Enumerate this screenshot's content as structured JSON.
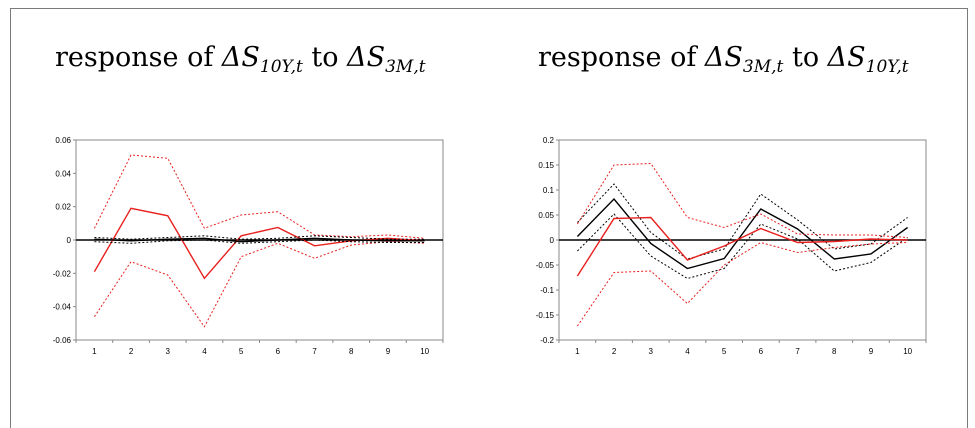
{
  "panels": [
    {
      "title": {
        "prefix": "response of ",
        "lhs": "ΔS",
        "lhs_sub": "10Y,t",
        "mid": " to ",
        "rhs": "ΔS",
        "rhs_sub": "3M,t"
      }
    },
    {
      "title": {
        "prefix": "response of ",
        "lhs": "ΔS",
        "lhs_sub": "3M,t",
        "mid": " to ",
        "rhs": "ΔS",
        "rhs_sub": "10Y,t"
      }
    }
  ],
  "colors": {
    "red": "#e8201e",
    "black": "#000000",
    "axis": "#888888"
  },
  "chart_data": [
    {
      "type": "line",
      "x": [
        1,
        2,
        3,
        4,
        5,
        6,
        7,
        8,
        9,
        10
      ],
      "ylim": [
        -0.06,
        0.06
      ],
      "yticks": [
        "0.06",
        "0.04",
        "0.02",
        "0",
        "-0.02",
        "-0.04",
        "-0.06"
      ],
      "ytick_values": [
        0.06,
        0.04,
        0.02,
        0,
        -0.02,
        -0.04,
        -0.06
      ],
      "xticks": [
        "1",
        "2",
        "3",
        "4",
        "5",
        "6",
        "7",
        "8",
        "9",
        "10"
      ],
      "series": [
        {
          "color": "red",
          "style": "solid",
          "values": [
            -0.019,
            0.019,
            0.0145,
            -0.023,
            0.0025,
            0.0075,
            -0.0035,
            -0.0005,
            0.001,
            -0.0005
          ]
        },
        {
          "color": "red",
          "style": "dotted",
          "values": [
            0.007,
            0.051,
            0.049,
            0.007,
            0.015,
            0.017,
            0.003,
            0.002,
            0.003,
            0.001
          ]
        },
        {
          "color": "red",
          "style": "dotted",
          "values": [
            -0.046,
            -0.013,
            -0.021,
            -0.052,
            -0.01,
            -0.002,
            -0.011,
            -0.003,
            -0.001,
            -0.002
          ]
        },
        {
          "color": "black",
          "style": "solid",
          "values": [
            0.0005,
            -0.0005,
            0.0005,
            0.001,
            -0.001,
            0.0,
            0.001,
            0.0,
            -0.0005,
            -0.0005
          ]
        },
        {
          "color": "black",
          "style": "dotted",
          "values": [
            0.0015,
            0.0005,
            0.0015,
            0.0025,
            0.0005,
            0.001,
            0.0025,
            0.0015,
            0.0005,
            0.0005
          ]
        },
        {
          "color": "black",
          "style": "dotted",
          "values": [
            -0.001,
            -0.002,
            -0.0005,
            0.0,
            -0.002,
            -0.001,
            0.0,
            -0.001,
            -0.0015,
            -0.0015
          ]
        }
      ]
    },
    {
      "type": "line",
      "x": [
        1,
        2,
        3,
        4,
        5,
        6,
        7,
        8,
        9,
        10
      ],
      "ylim": [
        -0.2,
        0.2
      ],
      "yticks": [
        "0.2",
        "0.15",
        "0.1",
        "0.05",
        "0",
        "-0.05",
        "-0.1",
        "-0.15",
        "-0.2"
      ],
      "ytick_values": [
        0.2,
        0.15,
        0.1,
        0.05,
        0,
        -0.05,
        -0.1,
        -0.15,
        -0.2
      ],
      "xticks": [
        "1",
        "2",
        "3",
        "4",
        "5",
        "6",
        "7",
        "8",
        "9",
        "10"
      ],
      "series": [
        {
          "color": "black",
          "style": "solid",
          "values": [
            0.007,
            0.082,
            -0.007,
            -0.057,
            -0.037,
            0.062,
            0.022,
            -0.038,
            -0.028,
            0.025
          ]
        },
        {
          "color": "black",
          "style": "dotted",
          "values": [
            0.035,
            0.112,
            0.015,
            -0.038,
            -0.018,
            0.092,
            0.04,
            -0.018,
            -0.008,
            0.045
          ]
        },
        {
          "color": "black",
          "style": "dotted",
          "values": [
            -0.022,
            0.052,
            -0.032,
            -0.077,
            -0.057,
            0.032,
            0.002,
            -0.062,
            -0.045,
            0.005
          ]
        },
        {
          "color": "red",
          "style": "solid",
          "values": [
            -0.072,
            0.043,
            0.045,
            -0.04,
            -0.012,
            0.023,
            -0.005,
            -0.003,
            0.002,
            0.0
          ]
        },
        {
          "color": "red",
          "style": "dotted",
          "values": [
            0.032,
            0.15,
            0.153,
            0.045,
            0.025,
            0.052,
            0.012,
            0.01,
            0.01,
            0.005
          ]
        },
        {
          "color": "red",
          "style": "dotted",
          "values": [
            -0.172,
            -0.065,
            -0.062,
            -0.127,
            -0.05,
            -0.005,
            -0.025,
            -0.015,
            -0.008,
            -0.005
          ]
        }
      ]
    }
  ]
}
